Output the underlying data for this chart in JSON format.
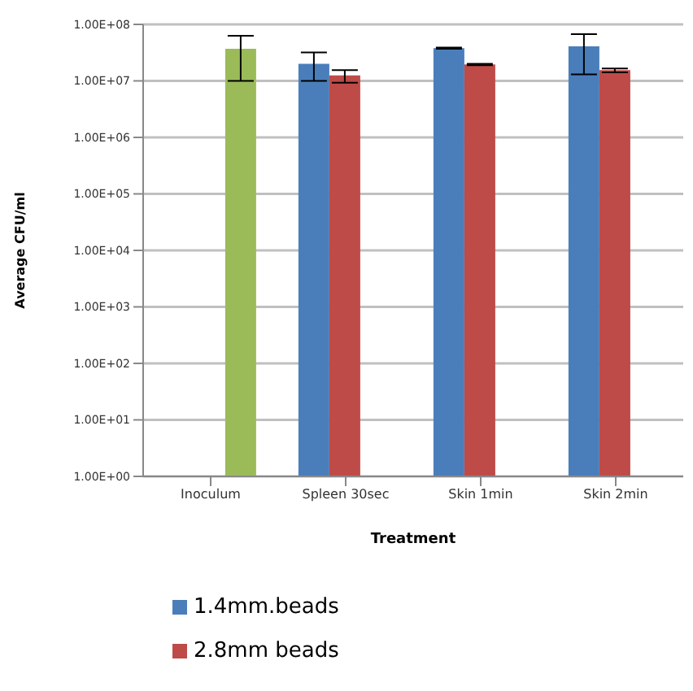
{
  "chart_data": {
    "type": "bar",
    "xlabel": "Treatment",
    "ylabel": "Average CFU/ml",
    "categories": [
      "Inoculum",
      "Spleen 30sec",
      "Skin 1min",
      "Skin 2min"
    ],
    "series": [
      {
        "name": "1.4mm.beads",
        "color": "#4a7ebb",
        "values": [
          null,
          20000000.0,
          38000000.0,
          41000000.0
        ],
        "errors": [
          null,
          [
            10000000.0,
            32000000.0
          ],
          [
            37000000.0,
            39000000.0
          ],
          [
            13000000.0,
            67000000.0
          ]
        ]
      },
      {
        "name": "2.8mm beads",
        "color": "#be4b48",
        "values": [
          null,
          12500000.0,
          19500000.0,
          15500000.0
        ],
        "errors": [
          null,
          [
            9300000.0,
            15500000.0
          ],
          [
            19000000.0,
            20000000.0
          ],
          [
            14200000.0,
            16600000.0
          ]
        ]
      },
      {
        "color": "#9bbb59",
        "values": [
          37000000.0,
          null,
          null,
          null
        ],
        "errors": [
          [
            10000000.0,
            63000000.0
          ],
          null,
          null,
          null
        ]
      }
    ],
    "log": "y",
    "ylim": [
      1,
      100000000.0
    ],
    "yticks": [
      {
        "value": 1,
        "label": "1.00E+00"
      },
      {
        "value": 10,
        "label": "1.00E+01"
      },
      {
        "value": 100,
        "label": "1.00E+02"
      },
      {
        "value": 1000,
        "label": "1.00E+03"
      },
      {
        "value": 10000,
        "label": "1.00E+04"
      },
      {
        "value": 100000,
        "label": "1.00E+05"
      },
      {
        "value": 1000000,
        "label": "1.00E+06"
      },
      {
        "value": 10000000,
        "label": "1.00E+07"
      },
      {
        "value": 100000000,
        "label": "1.00E+08"
      }
    ],
    "grid": "y",
    "legend": "bottom left"
  }
}
